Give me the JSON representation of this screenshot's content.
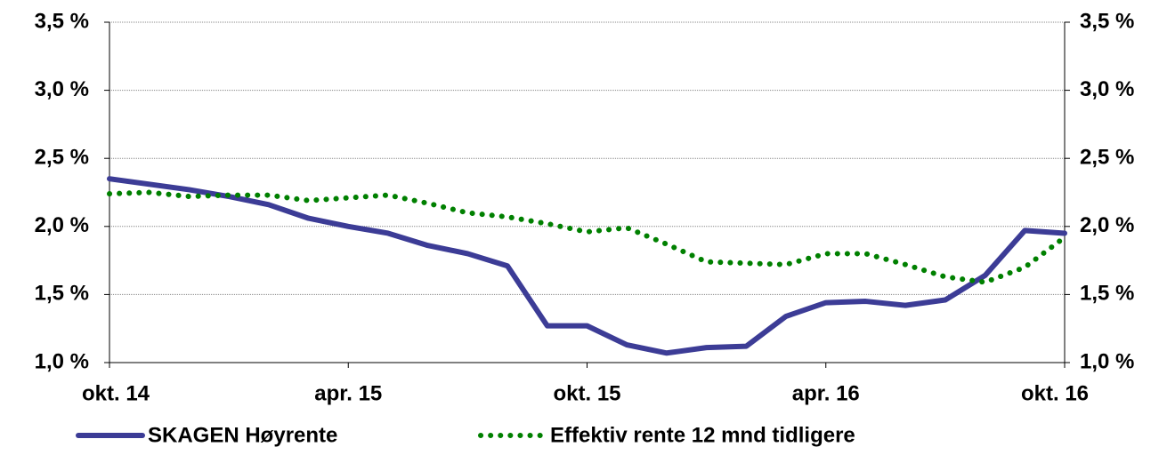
{
  "chart_data": {
    "type": "line",
    "categories": [
      "okt. 14",
      null,
      null,
      null,
      null,
      null,
      "apr. 15",
      null,
      null,
      null,
      null,
      null,
      "okt. 15",
      null,
      null,
      null,
      null,
      null,
      "apr. 16",
      null,
      null,
      null,
      null,
      null,
      "okt. 16"
    ],
    "series": [
      {
        "name": "SKAGEN Høyrente",
        "color": "#3c3c96",
        "style": "solid",
        "values": [
          2.35,
          2.31,
          2.27,
          2.22,
          2.16,
          2.06,
          2.0,
          1.95,
          1.86,
          1.8,
          1.71,
          1.27,
          1.27,
          1.13,
          1.07,
          1.11,
          1.12,
          1.34,
          1.44,
          1.45,
          1.42,
          1.46,
          1.64,
          1.97,
          1.95
        ]
      },
      {
        "name": "Effektiv rente 12 mnd tidligere",
        "color": "#008000",
        "style": "dotted",
        "values": [
          2.24,
          2.25,
          2.22,
          2.23,
          2.23,
          2.19,
          2.21,
          2.23,
          2.17,
          2.1,
          2.07,
          2.02,
          1.96,
          1.99,
          1.87,
          1.74,
          1.73,
          1.72,
          1.8,
          1.8,
          1.72,
          1.63,
          1.59,
          1.7,
          1.92
        ]
      }
    ],
    "ylim": [
      1.0,
      3.5
    ],
    "yticks": [
      {
        "value": 1.0,
        "label": "1,0 %"
      },
      {
        "value": 1.5,
        "label": "1,5 %"
      },
      {
        "value": 2.0,
        "label": "2,0 %"
      },
      {
        "value": 2.5,
        "label": "2,5 %"
      },
      {
        "value": 3.0,
        "label": "3,0 %"
      },
      {
        "value": 3.5,
        "label": "3,5 %"
      }
    ],
    "y2lim": [
      1.0,
      3.5
    ],
    "y2ticks": [
      {
        "value": 1.0,
        "label": "1,0 %"
      },
      {
        "value": 1.5,
        "label": "1,5 %"
      },
      {
        "value": 2.0,
        "label": "2,0 %"
      },
      {
        "value": 2.5,
        "label": "2,5 %"
      },
      {
        "value": 3.0,
        "label": "3,0 %"
      },
      {
        "value": 3.5,
        "label": "3,5 %"
      }
    ],
    "grid": true,
    "legend": "bottom"
  }
}
